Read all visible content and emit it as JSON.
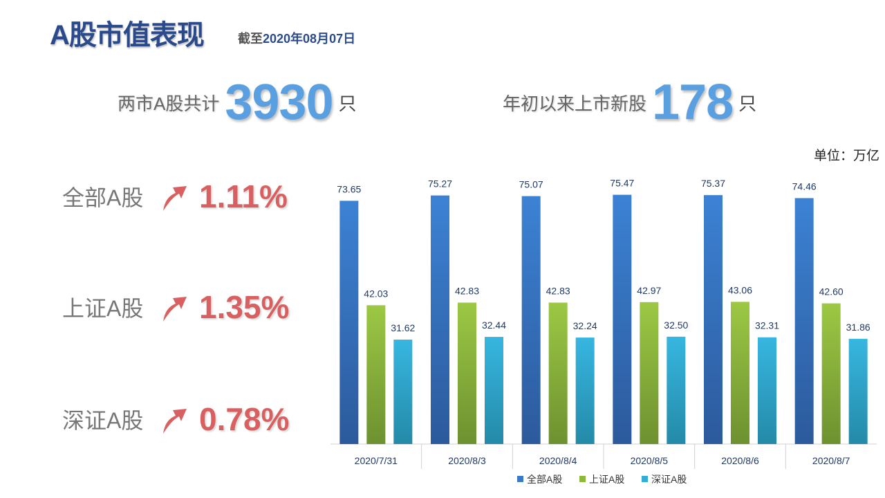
{
  "header": {
    "title": "A股市值表现",
    "asof_prefix": "截至",
    "asof_date": "2020年08月07日"
  },
  "stats": [
    {
      "label": "两市A股共计",
      "value": "3930",
      "unit": "只"
    },
    {
      "label": "年初以来上市新股",
      "value": "178",
      "unit": "只"
    }
  ],
  "changes": [
    {
      "name": "全部A股",
      "pct": "1.11%"
    },
    {
      "name": "上证A股",
      "pct": "1.35%"
    },
    {
      "name": "深证A股",
      "pct": "0.78%"
    }
  ],
  "colors": {
    "up_arrow": "#d96060",
    "series": [
      "#3b78c8",
      "#8db83a",
      "#31aed6"
    ]
  },
  "chart_data": {
    "type": "bar",
    "unit_label": "单位：万亿",
    "categories": [
      "2020/7/31",
      "2020/8/3",
      "2020/8/4",
      "2020/8/5",
      "2020/8/6",
      "2020/8/7"
    ],
    "series": [
      {
        "name": "全部A股",
        "values": [
          73.65,
          75.27,
          75.07,
          75.47,
          75.37,
          74.46
        ]
      },
      {
        "name": "上证A股",
        "values": [
          42.03,
          42.83,
          42.83,
          42.97,
          43.06,
          42.6
        ]
      },
      {
        "name": "深证A股",
        "values": [
          31.62,
          32.44,
          32.24,
          32.5,
          32.31,
          31.86
        ]
      }
    ],
    "ylim": [
      0,
      80
    ],
    "grid": false,
    "legend": "bottom",
    "data_labels": true
  }
}
